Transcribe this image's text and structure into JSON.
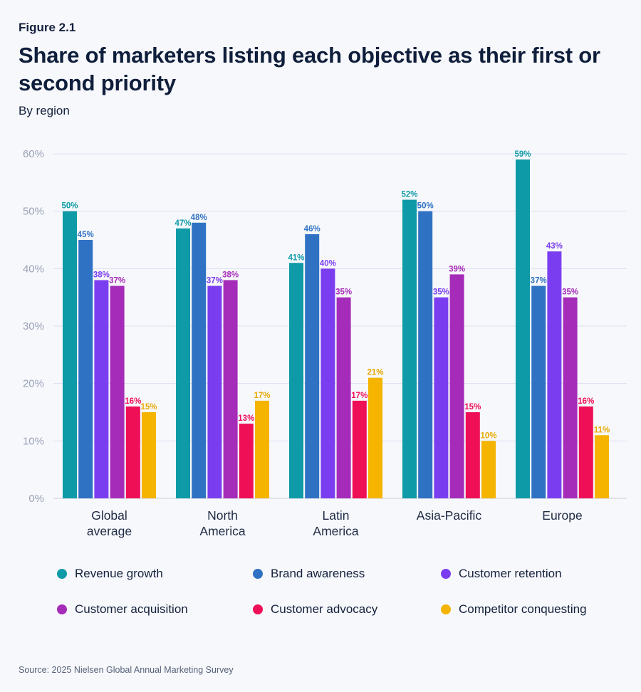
{
  "header": {
    "figure_label": "Figure 2.1",
    "title": "Share of marketers listing each objective as their first or second priority",
    "subtitle": "By region"
  },
  "chart_data": {
    "type": "bar",
    "title": "Share of marketers listing each objective as their first or second priority",
    "subtitle": "By region",
    "xlabel": "",
    "ylabel": "",
    "ylim": [
      0,
      60
    ],
    "yticks": [
      0,
      10,
      20,
      30,
      40,
      50,
      60
    ],
    "ytick_labels": [
      "0%",
      "10%",
      "20%",
      "30%",
      "40%",
      "50%",
      "60%"
    ],
    "grid": true,
    "legend_position": "bottom",
    "categories": [
      [
        "Global",
        "average"
      ],
      [
        "North",
        "America"
      ],
      [
        "Latin",
        "America"
      ],
      [
        "Asia-Pacific"
      ],
      [
        "Europe"
      ]
    ],
    "series": [
      {
        "name": "Revenue growth",
        "color": "#0e9aa7",
        "label_color": "#0e9aa7",
        "values": [
          50,
          47,
          41,
          52,
          59
        ]
      },
      {
        "name": "Brand awareness",
        "color": "#2f72c4",
        "label_color": "#2f72c4",
        "values": [
          45,
          48,
          46,
          50,
          37
        ]
      },
      {
        "name": "Customer retention",
        "color": "#7a3ef0",
        "label_color": "#7a3ef0",
        "values": [
          38,
          37,
          40,
          35,
          43
        ]
      },
      {
        "name": "Customer acquisition",
        "color": "#a52cb8",
        "label_color": "#a52cb8",
        "values": [
          37,
          38,
          35,
          39,
          35
        ]
      },
      {
        "name": "Customer advocacy",
        "color": "#ef0f57",
        "label_color": "#ef0f57",
        "values": [
          16,
          13,
          17,
          15,
          16
        ]
      },
      {
        "name": "Competitor conquesting",
        "color": "#f4b400",
        "label_color": "#e8a800",
        "values": [
          15,
          17,
          21,
          10,
          11
        ]
      }
    ],
    "value_suffix": "%"
  },
  "legend": {
    "items": [
      {
        "label": "Revenue growth",
        "color": "#0e9aa7"
      },
      {
        "label": "Brand awareness",
        "color": "#2f72c4"
      },
      {
        "label": "Customer retention",
        "color": "#7a3ef0"
      },
      {
        "label": "Customer acquisition",
        "color": "#a52cb8"
      },
      {
        "label": "Customer advocacy",
        "color": "#ef0f57"
      },
      {
        "label": "Competitor conquesting",
        "color": "#f4b400"
      }
    ]
  },
  "footer": {
    "source": "Source: 2025 Nielsen Global Annual Marketing Survey"
  }
}
